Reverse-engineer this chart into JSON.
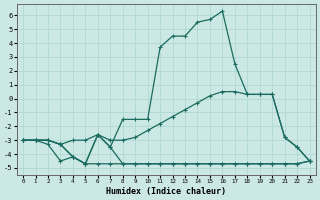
{
  "xlabel": "Humidex (Indice chaleur)",
  "bg_color": "#cce8e4",
  "grid_color": "#b0d8d4",
  "line_color": "#1a6b60",
  "xlim": [
    -0.5,
    23.5
  ],
  "ylim": [
    -5.5,
    6.8
  ],
  "xticks": [
    0,
    1,
    2,
    3,
    4,
    5,
    6,
    7,
    8,
    9,
    10,
    11,
    12,
    13,
    14,
    15,
    16,
    17,
    18,
    19,
    20,
    21,
    22,
    23
  ],
  "yticks": [
    -5,
    -4,
    -3,
    -2,
    -1,
    0,
    1,
    2,
    3,
    4,
    5,
    6
  ],
  "series1_x": [
    0,
    1,
    2,
    3,
    4,
    5,
    6,
    7,
    8,
    9,
    10,
    11,
    12,
    13,
    14,
    15,
    16,
    17,
    18,
    19,
    20,
    21,
    22,
    23
  ],
  "series1_y": [
    -3.0,
    -3.0,
    -3.3,
    -4.5,
    -4.2,
    -4.7,
    -4.7,
    -4.7,
    -4.7,
    -4.7,
    -4.7,
    -4.7,
    -4.7,
    -4.7,
    -4.7,
    -4.7,
    -4.7,
    -4.7,
    -4.7,
    -4.7,
    -4.7,
    -4.7,
    -4.7,
    -4.5
  ],
  "series2_x": [
    0,
    1,
    2,
    3,
    4,
    5,
    6,
    7,
    8,
    9,
    10,
    11,
    12,
    13,
    14,
    15,
    16,
    17,
    18,
    19,
    20,
    21,
    22,
    23
  ],
  "series2_y": [
    -3.0,
    -3.0,
    -3.0,
    -3.3,
    -4.2,
    -4.7,
    -2.6,
    -3.5,
    -4.7,
    -4.7,
    -4.7,
    -4.7,
    -4.7,
    -4.7,
    -4.7,
    -4.7,
    -4.7,
    -4.7,
    -4.7,
    -4.7,
    -4.7,
    -4.7,
    -4.7,
    -4.5
  ],
  "series3_x": [
    0,
    1,
    2,
    3,
    4,
    5,
    6,
    7,
    8,
    9,
    10,
    11,
    12,
    13,
    14,
    15,
    16,
    17,
    18,
    19,
    20,
    21,
    22,
    23
  ],
  "series3_y": [
    -3.0,
    -3.0,
    -3.0,
    -3.3,
    -4.2,
    -4.7,
    -2.6,
    -3.5,
    -1.5,
    -1.5,
    -1.5,
    3.7,
    4.5,
    4.5,
    5.5,
    5.7,
    6.3,
    2.5,
    0.3,
    0.3,
    0.3,
    -2.8,
    -3.5,
    -4.5
  ],
  "series4_x": [
    0,
    1,
    2,
    3,
    4,
    5,
    6,
    7,
    8,
    9,
    10,
    11,
    12,
    13,
    14,
    15,
    16,
    17,
    18,
    19,
    20,
    21,
    22,
    23
  ],
  "series4_y": [
    -3.0,
    -3.0,
    -3.0,
    -3.3,
    -3.0,
    -3.0,
    -2.6,
    -3.0,
    -3.0,
    -2.8,
    -2.3,
    -1.8,
    -1.3,
    -0.8,
    -0.3,
    0.2,
    0.5,
    0.5,
    0.3,
    0.3,
    0.3,
    -2.8,
    -3.5,
    -4.5
  ],
  "markersize": 2.5,
  "linewidth": 0.9
}
